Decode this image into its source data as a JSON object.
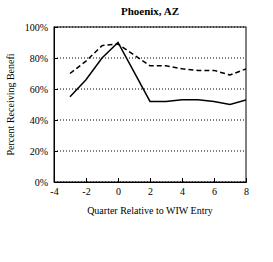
{
  "chart_data": {
    "type": "line",
    "title": "Phoenix, AZ",
    "x_label": "Quarter Relative to WIW Entry",
    "y_label": "Percent Receiving Benefi",
    "x": [
      -3,
      -2,
      -1,
      0,
      1,
      2,
      3,
      4,
      5,
      6,
      7,
      8
    ],
    "series": [
      {
        "color": "#000000",
        "line_style": "solid",
        "values": [
          55,
          66,
          80,
          90,
          71,
          52,
          52,
          53,
          53,
          52,
          50,
          53
        ]
      },
      {
        "color": "#000000",
        "line_style": "dashed",
        "values": [
          70,
          78,
          88,
          89,
          82,
          75,
          75,
          73,
          72,
          72,
          69,
          73
        ]
      }
    ],
    "xlim": [
      -4,
      8
    ],
    "xticks": [
      -4,
      -2,
      0,
      2,
      4,
      6,
      8
    ],
    "ylim": [
      0,
      100
    ],
    "yticks": [
      {
        "value": 0,
        "label": "0%"
      },
      {
        "value": 20,
        "label": "20%"
      },
      {
        "value": 40,
        "label": "40%"
      },
      {
        "value": 60,
        "label": "60%"
      },
      {
        "value": 80,
        "label": "80%"
      },
      {
        "value": 100,
        "label": "100%"
      }
    ],
    "grid": true
  }
}
